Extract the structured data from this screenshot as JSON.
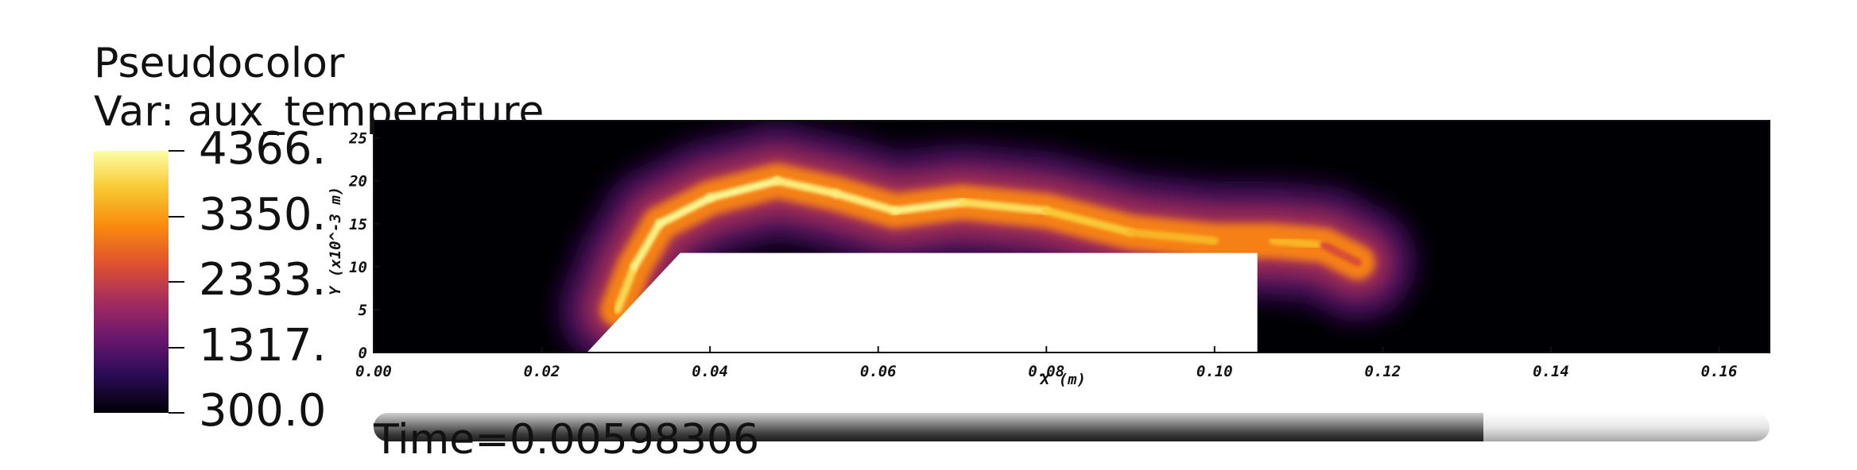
{
  "legend": {
    "title": "Pseudocolor",
    "variable": "Var: aux_temperature",
    "ticks": [
      "4366.",
      "3350.",
      "2333.",
      "1317.",
      "300.0"
    ],
    "colormap": "inferno",
    "colors": [
      "#000004",
      "#2a0b55",
      "#6a176e",
      "#a72d5e",
      "#e0522e",
      "#f98b0d",
      "#f8c932",
      "#fcffa4"
    ]
  },
  "time_label": "Time=0.00598306",
  "time_progress": 0.795,
  "chart_data": {
    "type": "heatmap",
    "title": "",
    "variable": "aux_temperature",
    "value_range": [
      300.0,
      4366.0
    ],
    "xlabel": "X (m)",
    "ylabel": "Y (x10^-3 m)",
    "xlim": [
      0.0,
      0.166
    ],
    "ylim": [
      0,
      27
    ],
    "x_ticks": [
      "0.00",
      "0.02",
      "0.04",
      "0.06",
      "0.08",
      "0.10",
      "0.12",
      "0.14",
      "0.16"
    ],
    "x_tick_values": [
      0.0,
      0.02,
      0.04,
      0.06,
      0.08,
      0.1,
      0.12,
      0.14,
      0.16
    ],
    "y_ticks": [
      "0",
      "5",
      "10",
      "15",
      "20",
      "25"
    ],
    "y_tick_values": [
      0,
      5,
      10,
      15,
      20,
      25
    ],
    "obstacle": {
      "description": "solid step (no data)",
      "vertices_x": [
        0.0255,
        0.0365,
        0.105,
        0.105
      ],
      "vertices_y": [
        0,
        11.5,
        11.5,
        0
      ]
    },
    "flame_centerline": {
      "x": [
        0.029,
        0.031,
        0.034,
        0.04,
        0.048,
        0.055,
        0.062,
        0.07,
        0.08,
        0.09,
        0.1,
        0.107,
        0.113,
        0.117
      ],
      "y": [
        5,
        10,
        15,
        18,
        20,
        18.5,
        16.5,
        17.5,
        16.5,
        14,
        13,
        13,
        12.5,
        10.5
      ],
      "temperature": [
        3800,
        4100,
        4300,
        4200,
        4300,
        4000,
        4300,
        4100,
        3900,
        3700,
        3500,
        3900,
        3300,
        1800
      ]
    }
  }
}
